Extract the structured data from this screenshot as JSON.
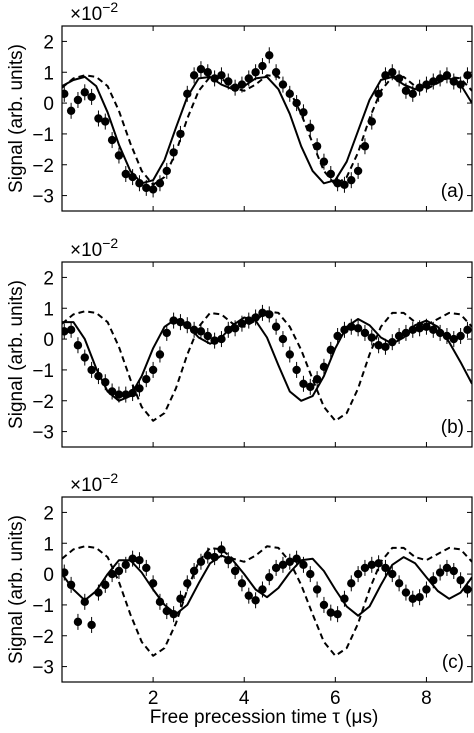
{
  "figure": {
    "xlabel": "Free precession time τ (μs)",
    "ylabel": "Signal (arb. units)",
    "scale_base": "×10",
    "scale_exp": "−2"
  },
  "chart_data": [
    {
      "type": "scatter",
      "panel_label": "(a)",
      "xlim": [
        0,
        9
      ],
      "ylim": [
        -3.5,
        2.5
      ],
      "yticks": [
        -3,
        -2,
        -1,
        0,
        1,
        2
      ],
      "xticks": [
        2,
        4,
        6,
        8
      ],
      "grid": false,
      "series": [
        {
          "kind": "points",
          "error_bars": true,
          "x": [
            0.05,
            0.2,
            0.35,
            0.5,
            0.65,
            0.8,
            0.95,
            1.1,
            1.25,
            1.4,
            1.55,
            1.7,
            1.85,
            2.0,
            2.15,
            2.3,
            2.45,
            2.6,
            2.75,
            2.9,
            3.05,
            3.2,
            3.35,
            3.5,
            3.65,
            3.8,
            3.95,
            4.1,
            4.25,
            4.4,
            4.55,
            4.7,
            4.85,
            5.0,
            5.15,
            5.3,
            5.45,
            5.6,
            5.75,
            5.9,
            6.05,
            6.2,
            6.35,
            6.5,
            6.65,
            6.8,
            6.95,
            7.1,
            7.25,
            7.4,
            7.55,
            7.7,
            7.85,
            8.0,
            8.15,
            8.3,
            8.45,
            8.6,
            8.75,
            8.9
          ],
          "y": [
            0.3,
            -0.25,
            0.1,
            0.35,
            0.2,
            -0.5,
            -0.6,
            -1.2,
            -1.7,
            -2.3,
            -2.4,
            -2.6,
            -2.75,
            -2.8,
            -2.6,
            -2.2,
            -1.6,
            -1.0,
            0.3,
            0.9,
            1.1,
            1.0,
            0.8,
            0.9,
            0.7,
            0.5,
            0.6,
            0.8,
            1.0,
            1.2,
            1.55,
            1.0,
            0.6,
            0.3,
            0.0,
            -0.3,
            -0.8,
            -1.4,
            -1.9,
            -2.3,
            -2.6,
            -2.65,
            -2.5,
            -2.2,
            -1.4,
            -0.6,
            0.3,
            0.9,
            1.0,
            0.8,
            0.4,
            0.3,
            0.5,
            0.6,
            0.7,
            0.8,
            0.9,
            0.7,
            0.6,
            0.9
          ]
        },
        {
          "kind": "solid_line",
          "x": [
            0,
            0.25,
            0.5,
            0.75,
            1.0,
            1.25,
            1.5,
            1.75,
            2.0,
            2.25,
            2.5,
            2.75,
            3.0,
            3.25,
            3.5,
            3.75,
            4.0,
            4.25,
            4.5,
            4.75,
            5.0,
            5.25,
            5.5,
            5.75,
            6.0,
            6.25,
            6.5,
            6.75,
            7.0,
            7.25,
            7.5,
            7.75,
            8.0,
            8.25,
            8.5,
            8.75,
            9.0
          ],
          "y": [
            0.55,
            0.75,
            0.85,
            0.55,
            -0.3,
            -1.35,
            -2.2,
            -2.6,
            -2.5,
            -1.85,
            -0.8,
            0.2,
            0.8,
            0.85,
            0.6,
            0.45,
            0.55,
            0.8,
            0.85,
            0.45,
            -0.35,
            -1.4,
            -2.2,
            -2.6,
            -2.5,
            -1.9,
            -0.9,
            0.1,
            0.75,
            0.85,
            0.6,
            0.45,
            0.55,
            0.75,
            0.8,
            0.6,
            0.0
          ]
        },
        {
          "kind": "dashed_line",
          "x": [
            0,
            0.25,
            0.5,
            0.75,
            1.0,
            1.25,
            1.5,
            1.75,
            2.0,
            2.25,
            2.5,
            2.75,
            3.0,
            3.25,
            3.5,
            3.75,
            4.0,
            4.25,
            4.5,
            4.75,
            5.0,
            5.25,
            5.5,
            5.75,
            6.0,
            6.25,
            6.5,
            6.75,
            7.0,
            7.25,
            7.5,
            7.75,
            8.0,
            8.25,
            8.5,
            8.75,
            9.0
          ],
          "y": [
            0.5,
            0.8,
            0.9,
            0.85,
            0.55,
            -0.25,
            -1.3,
            -2.2,
            -2.65,
            -2.4,
            -1.6,
            -0.5,
            0.4,
            0.85,
            0.8,
            0.5,
            0.4,
            0.6,
            0.9,
            0.85,
            0.4,
            -0.35,
            -1.3,
            -2.2,
            -2.65,
            -2.4,
            -1.6,
            -0.5,
            0.4,
            0.85,
            0.85,
            0.55,
            0.45,
            0.65,
            0.85,
            0.8,
            0.4
          ]
        }
      ]
    },
    {
      "type": "scatter",
      "panel_label": "(b)",
      "xlim": [
        0,
        9
      ],
      "ylim": [
        -3.5,
        2.5
      ],
      "yticks": [
        -3,
        -2,
        -1,
        0,
        1,
        2
      ],
      "xticks": [
        2,
        4,
        6,
        8
      ],
      "grid": false,
      "series": [
        {
          "kind": "points",
          "error_bars": true,
          "x": [
            0.05,
            0.2,
            0.35,
            0.5,
            0.65,
            0.8,
            0.95,
            1.1,
            1.25,
            1.4,
            1.55,
            1.7,
            1.85,
            2.0,
            2.15,
            2.3,
            2.45,
            2.6,
            2.75,
            2.9,
            3.05,
            3.2,
            3.35,
            3.5,
            3.65,
            3.8,
            3.95,
            4.1,
            4.25,
            4.4,
            4.55,
            4.7,
            4.85,
            5.0,
            5.15,
            5.3,
            5.45,
            5.6,
            5.75,
            5.9,
            6.05,
            6.2,
            6.35,
            6.5,
            6.65,
            6.8,
            6.95,
            7.1,
            7.25,
            7.4,
            7.55,
            7.7,
            7.85,
            8.0,
            8.15,
            8.3,
            8.45,
            8.6,
            8.75,
            8.9
          ],
          "y": [
            0.25,
            0.3,
            -0.2,
            -0.6,
            -1.0,
            -1.2,
            -1.4,
            -1.7,
            -1.8,
            -1.8,
            -1.75,
            -1.6,
            -1.3,
            -1.0,
            -0.5,
            0.2,
            0.6,
            0.55,
            0.45,
            0.3,
            0.25,
            0.1,
            -0.05,
            0.0,
            0.3,
            0.35,
            0.5,
            0.6,
            0.7,
            0.85,
            0.8,
            0.4,
            0.0,
            -0.5,
            -1.0,
            -1.45,
            -1.55,
            -1.3,
            -0.9,
            -0.35,
            0.1,
            0.3,
            0.4,
            0.35,
            0.2,
            0.05,
            -0.2,
            -0.25,
            -0.1,
            0.1,
            0.2,
            0.3,
            0.35,
            0.4,
            0.3,
            0.2,
            0.1,
            0.0,
            0.1,
            0.3
          ]
        },
        {
          "kind": "solid_line",
          "x": [
            0,
            0.25,
            0.5,
            0.75,
            1.0,
            1.25,
            1.5,
            1.75,
            2.0,
            2.25,
            2.5,
            2.75,
            3.0,
            3.25,
            3.5,
            3.75,
            4.0,
            4.25,
            4.5,
            4.75,
            5.0,
            5.25,
            5.5,
            5.75,
            6.0,
            6.25,
            6.5,
            6.75,
            7.0,
            7.25,
            7.5,
            7.75,
            8.0,
            8.25,
            8.5,
            8.75,
            9.0
          ],
          "y": [
            0.55,
            0.55,
            0.0,
            -0.95,
            -1.7,
            -2.0,
            -1.85,
            -1.2,
            -0.3,
            0.4,
            0.65,
            0.45,
            0.05,
            -0.15,
            0.05,
            0.45,
            0.7,
            0.6,
            0.05,
            -0.85,
            -1.7,
            -2.0,
            -1.85,
            -1.2,
            -0.3,
            0.4,
            0.65,
            0.45,
            0.05,
            -0.15,
            0.05,
            0.45,
            0.6,
            0.4,
            -0.1,
            -0.75,
            -1.45
          ]
        },
        {
          "kind": "dashed_line",
          "x": [
            0,
            0.25,
            0.5,
            0.75,
            1.0,
            1.25,
            1.5,
            1.75,
            2.0,
            2.25,
            2.5,
            2.75,
            3.0,
            3.25,
            3.5,
            3.75,
            4.0,
            4.25,
            4.5,
            4.75,
            5.0,
            5.25,
            5.5,
            5.75,
            6.0,
            6.25,
            6.5,
            6.75,
            7.0,
            7.25,
            7.5,
            7.75,
            8.0,
            8.25,
            8.5,
            8.75,
            9.0
          ],
          "y": [
            0.5,
            0.8,
            0.9,
            0.85,
            0.55,
            -0.25,
            -1.3,
            -2.2,
            -2.65,
            -2.4,
            -1.6,
            -0.5,
            0.4,
            0.85,
            0.8,
            0.5,
            0.4,
            0.6,
            0.9,
            0.85,
            0.4,
            -0.35,
            -1.3,
            -2.2,
            -2.65,
            -2.4,
            -1.6,
            -0.5,
            0.4,
            0.85,
            0.85,
            0.55,
            0.45,
            0.65,
            0.85,
            0.8,
            0.4
          ]
        }
      ]
    },
    {
      "type": "scatter",
      "panel_label": "(c)",
      "xlim": [
        0,
        9
      ],
      "ylim": [
        -3.5,
        2.5
      ],
      "yticks": [
        -3,
        -2,
        -1,
        0,
        1,
        2
      ],
      "xticks": [
        2,
        4,
        6,
        8
      ],
      "grid": false,
      "series": [
        {
          "kind": "points",
          "error_bars": true,
          "x": [
            0.05,
            0.2,
            0.35,
            0.5,
            0.65,
            0.8,
            0.95,
            1.1,
            1.25,
            1.4,
            1.55,
            1.7,
            1.85,
            2.0,
            2.15,
            2.3,
            2.45,
            2.6,
            2.75,
            2.9,
            3.05,
            3.2,
            3.35,
            3.5,
            3.65,
            3.8,
            3.95,
            4.1,
            4.25,
            4.4,
            4.55,
            4.7,
            4.85,
            5.0,
            5.15,
            5.3,
            5.45,
            5.6,
            5.75,
            5.9,
            6.05,
            6.2,
            6.35,
            6.5,
            6.65,
            6.8,
            6.95,
            7.1,
            7.25,
            7.4,
            7.55,
            7.7,
            7.85,
            8.0,
            8.15,
            8.3,
            8.45,
            8.6,
            8.75,
            8.9
          ],
          "y": [
            0.05,
            -0.35,
            -1.55,
            -0.9,
            -1.65,
            -0.6,
            -0.35,
            0.0,
            0.1,
            0.3,
            0.5,
            0.45,
            0.2,
            -0.3,
            -0.9,
            -1.2,
            -1.3,
            -0.8,
            -0.3,
            0.1,
            0.4,
            0.6,
            0.55,
            0.8,
            0.45,
            0.1,
            -0.3,
            -0.7,
            -0.85,
            -0.5,
            -0.1,
            0.2,
            0.3,
            0.4,
            0.5,
            0.3,
            0.0,
            -0.5,
            -1.0,
            -1.25,
            -1.3,
            -0.8,
            -0.3,
            0.0,
            0.2,
            0.3,
            0.35,
            0.2,
            0.0,
            -0.3,
            -0.6,
            -0.8,
            -0.75,
            -0.5,
            -0.2,
            0.05,
            0.2,
            0.1,
            -0.2,
            -0.5
          ]
        },
        {
          "kind": "solid_line",
          "x": [
            0,
            0.25,
            0.5,
            0.75,
            1.0,
            1.25,
            1.5,
            1.75,
            2.0,
            2.25,
            2.5,
            2.75,
            3.0,
            3.25,
            3.5,
            3.75,
            4.0,
            4.25,
            4.5,
            4.75,
            5.0,
            5.25,
            5.5,
            5.75,
            6.0,
            6.25,
            6.5,
            6.75,
            7.0,
            7.25,
            7.5,
            7.75,
            8.0,
            8.25,
            8.5,
            8.75,
            9.0
          ],
          "y": [
            0.0,
            -0.5,
            -0.85,
            -0.55,
            0.0,
            0.45,
            0.45,
            0.05,
            -0.5,
            -1.0,
            -1.3,
            -1.0,
            -0.3,
            0.35,
            0.6,
            0.45,
            0.0,
            -0.5,
            -0.75,
            -0.45,
            0.05,
            0.45,
            0.5,
            0.1,
            -0.5,
            -1.05,
            -1.35,
            -1.05,
            -0.35,
            0.3,
            0.55,
            0.35,
            -0.1,
            -0.55,
            -0.8,
            -0.6,
            -0.1
          ]
        },
        {
          "kind": "dashed_line",
          "x": [
            0,
            0.25,
            0.5,
            0.75,
            1.0,
            1.25,
            1.5,
            1.75,
            2.0,
            2.25,
            2.5,
            2.75,
            3.0,
            3.25,
            3.5,
            3.75,
            4.0,
            4.25,
            4.5,
            4.75,
            5.0,
            5.25,
            5.5,
            5.75,
            6.0,
            6.25,
            6.5,
            6.75,
            7.0,
            7.25,
            7.5,
            7.75,
            8.0,
            8.25,
            8.5,
            8.75,
            9.0
          ],
          "y": [
            0.5,
            0.8,
            0.9,
            0.85,
            0.55,
            -0.25,
            -1.3,
            -2.2,
            -2.65,
            -2.4,
            -1.6,
            -0.5,
            0.4,
            0.85,
            0.8,
            0.5,
            0.4,
            0.6,
            0.9,
            0.85,
            0.4,
            -0.35,
            -1.3,
            -2.2,
            -2.65,
            -2.4,
            -1.6,
            -0.5,
            0.4,
            0.85,
            0.85,
            0.55,
            0.45,
            0.65,
            0.85,
            0.8,
            0.4
          ]
        }
      ]
    }
  ]
}
